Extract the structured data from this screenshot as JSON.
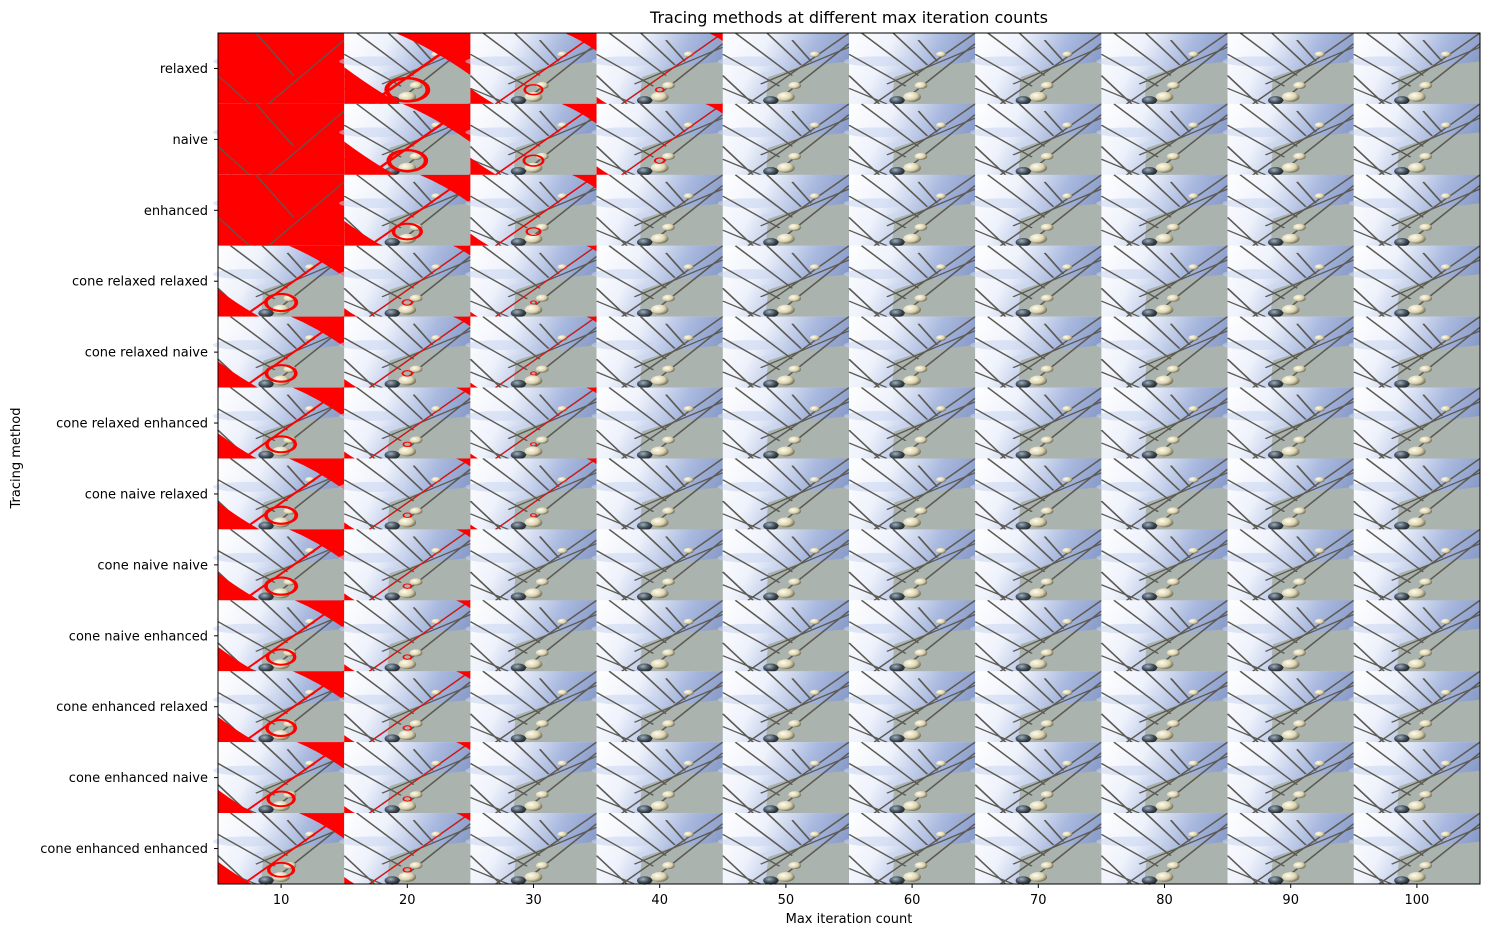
{
  "chart_data": {
    "type": "heatmap",
    "title": "Tracing methods at different max iteration counts",
    "xlabel": "Max iteration count",
    "ylabel": "Tracing method",
    "x": [
      10,
      20,
      30,
      40,
      50,
      60,
      70,
      80,
      90,
      100
    ],
    "xlim": [
      5,
      105
    ],
    "rows": [
      "relaxed",
      "naive",
      "enhanced",
      "cone relaxed relaxed",
      "cone relaxed naive",
      "cone relaxed enhanced",
      "cone naive relaxed",
      "cone naive naive",
      "cone naive enhanced",
      "cone enhanced relaxed",
      "cone enhanced naive",
      "cone enhanced enhanced"
    ],
    "red_coverage": [
      [
        0.95,
        0.55,
        0.1,
        0.02,
        0,
        0,
        0,
        0,
        0,
        0
      ],
      [
        0.95,
        0.45,
        0.12,
        0.03,
        0,
        0,
        0,
        0,
        0,
        0
      ],
      [
        0.95,
        0.25,
        0.06,
        0.0,
        0,
        0,
        0,
        0,
        0,
        0
      ],
      [
        0.3,
        0.03,
        0.01,
        0,
        0,
        0,
        0,
        0,
        0,
        0
      ],
      [
        0.28,
        0.03,
        0.01,
        0,
        0,
        0,
        0,
        0,
        0,
        0
      ],
      [
        0.26,
        0.02,
        0.01,
        0,
        0,
        0,
        0,
        0,
        0,
        0
      ],
      [
        0.3,
        0.02,
        0.01,
        0,
        0,
        0,
        0,
        0,
        0,
        0
      ],
      [
        0.3,
        0.02,
        0.0,
        0,
        0,
        0,
        0,
        0,
        0,
        0
      ],
      [
        0.24,
        0.02,
        0.0,
        0,
        0,
        0,
        0,
        0,
        0,
        0
      ],
      [
        0.26,
        0.02,
        0.0,
        0,
        0,
        0,
        0,
        0,
        0,
        0
      ],
      [
        0.22,
        0.02,
        0.0,
        0,
        0,
        0,
        0,
        0,
        0,
        0
      ],
      [
        0.2,
        0.02,
        0.0,
        0,
        0,
        0,
        0,
        0,
        0,
        0
      ]
    ],
    "colors": {
      "sky_light": "#ffffff",
      "sky_mid": "#c9d6f0",
      "sky_dark": "#8a9cc9",
      "floor": "#aab3ad",
      "rod": "#5c5a52",
      "sphere": "#e8e0c0",
      "sphere_dark": "#3b4650",
      "error_red": "#ff0000"
    }
  }
}
